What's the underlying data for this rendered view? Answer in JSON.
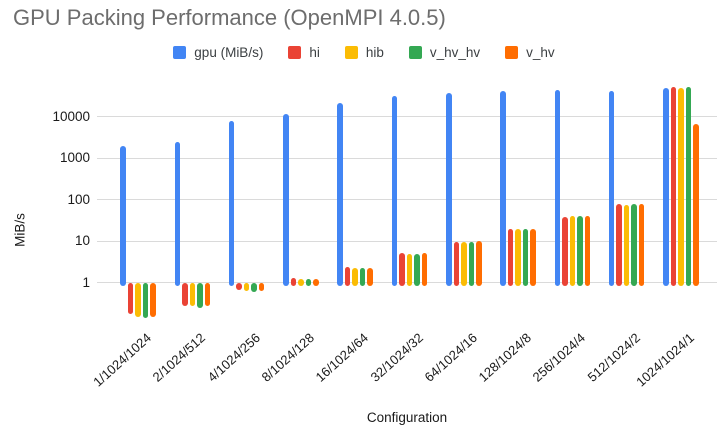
{
  "title": "GPU Packing Performance (OpenMPI 4.0.5)",
  "chart_data": {
    "type": "bar",
    "title": "GPU Packing Performance (OpenMPI 4.0.5)",
    "xlabel": "Configuration",
    "ylabel": "MiB/s",
    "y_scale": "log",
    "y_ticks": [
      1,
      10,
      100,
      1000,
      10000
    ],
    "ylim": [
      0.1,
      60000
    ],
    "grid": true,
    "legend_position": "top",
    "categories": [
      "1/1024/1024",
      "2/1024/512",
      "4/1024/256",
      "8/1024/128",
      "16/1024/64",
      "32/1024/32",
      "64/1024/16",
      "128/1024/8",
      "256/1024/4",
      "512/1024/2",
      "1024/1024/1"
    ],
    "series": [
      {
        "name": "gpu (MiB/s)",
        "color": "#4285F4",
        "values": [
          2000,
          2500,
          7800,
          11500,
          21000,
          31000,
          37000,
          41000,
          44000,
          41000,
          49000
        ]
      },
      {
        "name": "hi",
        "color": "#EA4335",
        "values": [
          0.18,
          0.28,
          0.65,
          1.3,
          2.4,
          5.2,
          9.5,
          20,
          38,
          79,
          51000
        ]
      },
      {
        "name": "hib",
        "color": "#FBBC04",
        "values": [
          0.15,
          0.27,
          0.62,
          1.2,
          2.2,
          4.9,
          9.8,
          20,
          40,
          76,
          50000
        ]
      },
      {
        "name": "v_hv_hv",
        "color": "#34A853",
        "values": [
          0.14,
          0.25,
          0.6,
          1.2,
          2.3,
          5.0,
          9.7,
          20,
          40,
          77,
          52000
        ]
      },
      {
        "name": "v_hv",
        "color": "#FF6D01",
        "values": [
          0.15,
          0.27,
          0.62,
          1.25,
          2.3,
          5.1,
          9.9,
          20,
          41,
          79,
          6500
        ]
      }
    ]
  }
}
